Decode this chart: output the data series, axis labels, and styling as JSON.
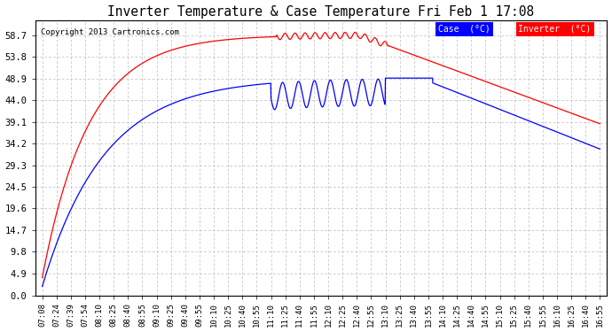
{
  "title": "Inverter Temperature & Case Temperature Fri Feb 1 17:08",
  "copyright": "Copyright 2013 Cartronics.com",
  "legend_case_label": "Case  (°C)",
  "legend_inverter_label": "Inverter  (°C)",
  "case_color": "#FF0000",
  "inverter_color": "#0000FF",
  "background_color": "#FFFFFF",
  "plot_bg_color": "#FFFFFF",
  "grid_color": "#BBBBBB",
  "yticks": [
    0.0,
    4.9,
    9.8,
    14.7,
    19.6,
    24.5,
    29.3,
    34.2,
    39.1,
    44.0,
    48.9,
    53.8,
    58.7
  ],
  "ylim": [
    0.0,
    62.0
  ],
  "xtick_labels": [
    "07:08",
    "07:24",
    "07:39",
    "07:54",
    "08:10",
    "08:25",
    "08:40",
    "08:55",
    "09:10",
    "09:25",
    "09:40",
    "09:55",
    "10:10",
    "10:25",
    "10:40",
    "10:55",
    "11:10",
    "11:25",
    "11:40",
    "11:55",
    "12:10",
    "12:25",
    "12:40",
    "12:55",
    "13:10",
    "13:25",
    "13:40",
    "13:55",
    "14:10",
    "14:25",
    "14:40",
    "14:55",
    "15:10",
    "15:25",
    "15:40",
    "15:55",
    "16:10",
    "16:25",
    "16:40",
    "16:55"
  ]
}
